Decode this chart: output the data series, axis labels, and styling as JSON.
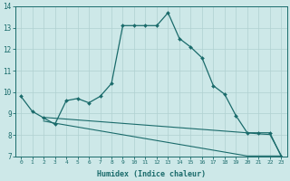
{
  "xlabel": "Humidex (Indice chaleur)",
  "background_color": "#cde8e8",
  "grid_color": "#b0d0d0",
  "line_color": "#1a6b6b",
  "xlim": [
    -0.5,
    23.5
  ],
  "ylim": [
    7,
    14
  ],
  "xtick_labels": [
    "0",
    "1",
    "2",
    "3",
    "4",
    "5",
    "6",
    "7",
    "8",
    "9",
    "10",
    "11",
    "12",
    "13",
    "14",
    "15",
    "16",
    "17",
    "18",
    "19",
    "20",
    "21",
    "22",
    "23"
  ],
  "ytick_labels": [
    "7",
    "8",
    "9",
    "10",
    "11",
    "12",
    "13",
    "14"
  ],
  "main_x": [
    0,
    1,
    2,
    3,
    4,
    5,
    6,
    7,
    8,
    9,
    10,
    11,
    12,
    13,
    14,
    15,
    16,
    17,
    18,
    19,
    20,
    21,
    22,
    23
  ],
  "main_y": [
    9.8,
    9.1,
    8.8,
    8.5,
    9.6,
    9.7,
    9.5,
    9.8,
    10.4,
    13.1,
    13.1,
    13.1,
    13.1,
    13.7,
    12.5,
    12.1,
    11.6,
    10.3,
    9.9,
    8.9,
    8.1,
    8.1,
    8.1,
    7.0
  ],
  "line2_x": [
    2,
    3,
    4,
    5,
    6,
    7,
    8,
    9,
    10,
    11,
    12,
    13,
    14,
    15,
    16,
    17,
    18,
    19,
    20,
    21,
    22,
    23
  ],
  "line2_y": [
    8.82,
    8.78,
    8.74,
    8.7,
    8.66,
    8.62,
    8.58,
    8.54,
    8.5,
    8.46,
    8.42,
    8.38,
    8.34,
    8.3,
    8.26,
    8.22,
    8.18,
    8.14,
    8.1,
    8.05,
    8.02,
    7.05
  ],
  "line3_x": [
    2,
    3,
    4,
    5,
    6,
    7,
    8,
    9,
    10,
    11,
    12,
    13,
    14,
    15,
    16,
    17,
    18,
    19,
    20,
    21,
    22,
    23
  ],
  "line3_y": [
    8.65,
    8.55,
    8.46,
    8.37,
    8.28,
    8.19,
    8.1,
    8.01,
    7.92,
    7.83,
    7.74,
    7.65,
    7.56,
    7.47,
    7.38,
    7.29,
    7.2,
    7.11,
    7.02,
    7.02,
    7.02,
    7.02
  ]
}
